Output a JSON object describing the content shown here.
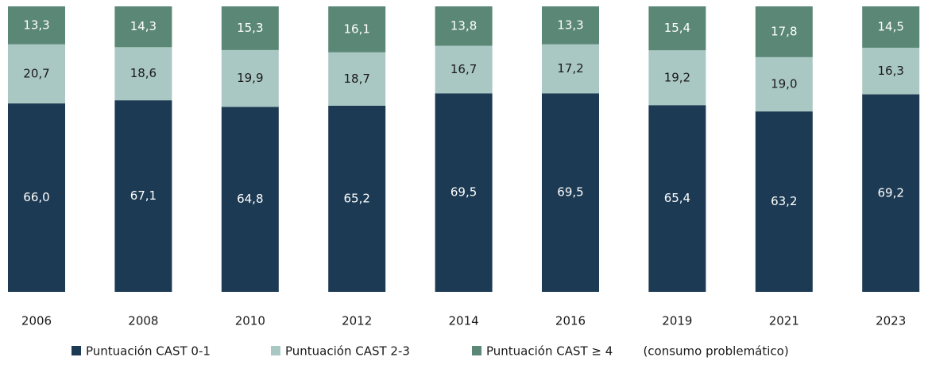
{
  "chart_data": {
    "type": "stacked_bar",
    "categories": [
      "2006",
      "2008",
      "2010",
      "2012",
      "2014",
      "2016",
      "2019",
      "2021",
      "2023"
    ],
    "ylim": [
      0,
      100
    ],
    "series": [
      {
        "name": "Puntuación CAST 0-1",
        "color": "#1c3a53",
        "label_color": "#ffffff",
        "values": [
          66.0,
          67.1,
          64.8,
          65.2,
          69.5,
          69.5,
          65.4,
          63.2,
          69.2
        ],
        "value_labels": [
          "66,0",
          "67,1",
          "64,8",
          "65,2",
          "69,5",
          "69,5",
          "65,4",
          "63,2",
          "69,2"
        ]
      },
      {
        "name": "Puntuación CAST 2-3",
        "color": "#aac8c3",
        "label_color": "#1a1a1a",
        "values": [
          20.7,
          18.6,
          19.9,
          18.7,
          16.7,
          17.2,
          19.2,
          19.0,
          16.3
        ],
        "value_labels": [
          "20,7",
          "18,6",
          "19,9",
          "18,7",
          "16,7",
          "17,2",
          "19,2",
          "19,0",
          "16,3"
        ]
      },
      {
        "name": "Puntuación CAST ≥ 4        (consumo problemático)",
        "color": "#5b8777",
        "label_color": "#ffffff",
        "values": [
          13.3,
          14.3,
          15.3,
          16.1,
          13.8,
          13.3,
          15.4,
          17.8,
          14.5
        ],
        "value_labels": [
          "13,3",
          "14,3",
          "15,3",
          "16,1",
          "13,8",
          "13,3",
          "15,4",
          "17,8",
          "14,5"
        ]
      }
    ]
  }
}
